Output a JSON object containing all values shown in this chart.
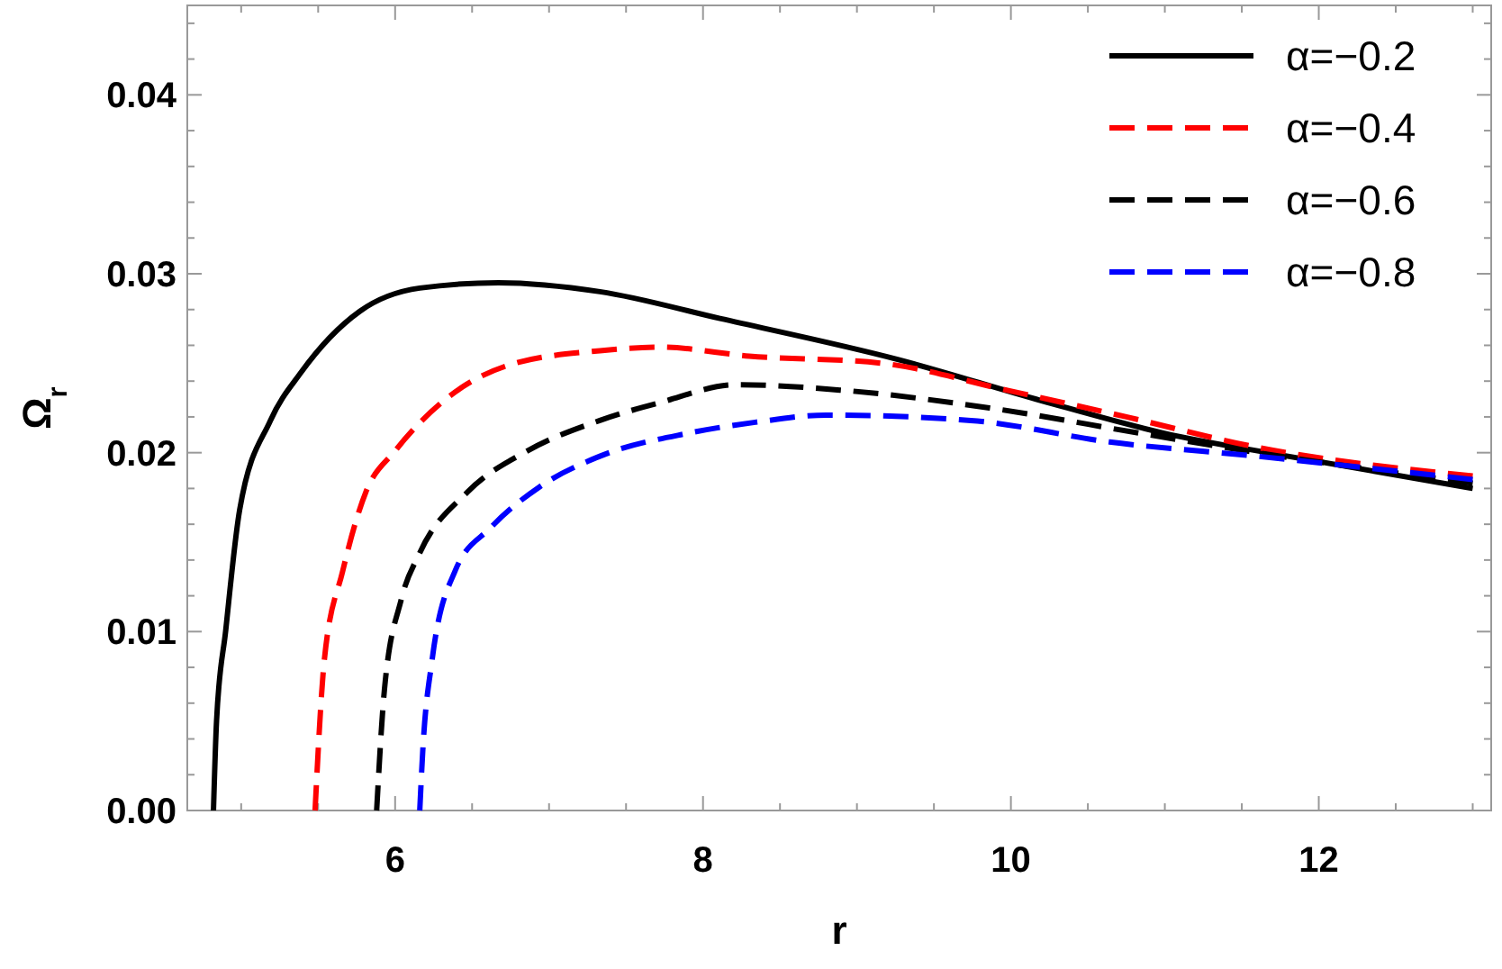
{
  "chart_data": {
    "type": "line",
    "xlabel": "r",
    "ylabel": "Ω$_{r}$",
    "xlim": [
      4.65,
      13.12
    ],
    "ylim": [
      0,
      0.045
    ],
    "xticks": [
      {
        "value": 5,
        "label": null
      },
      {
        "value": 5.5,
        "label": null
      },
      6,
      {
        "value": 6.5,
        "label": null
      },
      {
        "value": 7,
        "label": null
      },
      {
        "value": 7.5,
        "label": null
      },
      8,
      {
        "value": 8.5,
        "label": null
      },
      {
        "value": 9,
        "label": null
      },
      {
        "value": 9.5,
        "label": null
      },
      10,
      {
        "value": 10.5,
        "label": null
      },
      {
        "value": 11,
        "label": null
      },
      {
        "value": 11.5,
        "label": null
      },
      12,
      {
        "value": 12.5,
        "label": null
      },
      {
        "value": 13,
        "label": null
      }
    ],
    "yticks": [
      {
        "value": 0,
        "label": "0.00"
      },
      {
        "value": 0.002,
        "label": null
      },
      {
        "value": 0.004,
        "label": null
      },
      {
        "value": 0.006,
        "label": null
      },
      {
        "value": 0.008,
        "label": null
      },
      {
        "value": 0.01,
        "label": "0.01"
      },
      {
        "value": 0.012,
        "label": null
      },
      {
        "value": 0.014,
        "label": null
      },
      {
        "value": 0.016,
        "label": null
      },
      {
        "value": 0.018,
        "label": null
      },
      {
        "value": 0.02,
        "label": "0.02"
      },
      {
        "value": 0.022,
        "label": null
      },
      {
        "value": 0.024,
        "label": null
      },
      {
        "value": 0.026,
        "label": null
      },
      {
        "value": 0.028,
        "label": null
      },
      {
        "value": 0.03,
        "label": "0.03"
      },
      {
        "value": 0.032,
        "label": null
      },
      {
        "value": 0.034,
        "label": null
      },
      {
        "value": 0.036,
        "label": null
      },
      {
        "value": 0.038,
        "label": null
      },
      {
        "value": 0.04,
        "label": "0.04"
      },
      {
        "value": 0.042,
        "label": null
      },
      {
        "value": 0.044,
        "label": null
      }
    ],
    "grid": false,
    "legend": "top right",
    "series": [
      {
        "name": "α=−0.2",
        "color": "#000000",
        "line_style": "solid",
        "x": [
          4.82,
          4.84,
          4.9,
          4.99,
          5.19,
          5.39,
          5.77,
          6.16,
          6.67,
          7.33,
          8.11,
          9.27,
          10.2,
          10.99,
          11.8,
          13
        ],
        "values": [
          0,
          0.005,
          0.0101,
          0.0168,
          0.0218,
          0.0245,
          0.0279,
          0.0292,
          0.0295,
          0.029,
          0.0275,
          0.0252,
          0.0229,
          0.0211,
          0.0198,
          0.018
        ]
      },
      {
        "name": "α=−0.4",
        "color": "#ff0000",
        "line_style": "dashed",
        "x": [
          5.48,
          5.54,
          5.66,
          5.81,
          6,
          6.36,
          6.74,
          7.33,
          7.72,
          8.3,
          9.16,
          9.97,
          10.75,
          11.6,
          13
        ],
        "values": [
          0,
          0.0084,
          0.0134,
          0.0178,
          0.0201,
          0.0232,
          0.0249,
          0.0257,
          0.0259,
          0.0254,
          0.025,
          0.0235,
          0.022,
          0.0203,
          0.0187
        ]
      },
      {
        "name": "α=−0.6",
        "color": "#000000",
        "line_style": "dashed",
        "x": [
          5.88,
          5.93,
          6.04,
          6.16,
          6.47,
          6.86,
          7.33,
          7.72,
          8.22,
          8.89,
          9.86,
          10.83,
          11.6,
          13
        ],
        "values": [
          0,
          0.0067,
          0.0118,
          0.0144,
          0.0178,
          0.0201,
          0.0218,
          0.0228,
          0.0238,
          0.0235,
          0.0225,
          0.0211,
          0.02,
          0.0183
        ]
      },
      {
        "name": "α=−0.8",
        "color": "#0000ff",
        "line_style": "dashed",
        "x": [
          6.16,
          6.18,
          6.24,
          6.39,
          6.62,
          6.94,
          7.33,
          7.91,
          8.34,
          8.8,
          9.74,
          10.64,
          11.6,
          13
        ],
        "values": [
          0,
          0.0034,
          0.0084,
          0.0134,
          0.0158,
          0.0181,
          0.0198,
          0.0211,
          0.0217,
          0.0221,
          0.0218,
          0.0206,
          0.0198,
          0.0185
        ]
      }
    ]
  }
}
